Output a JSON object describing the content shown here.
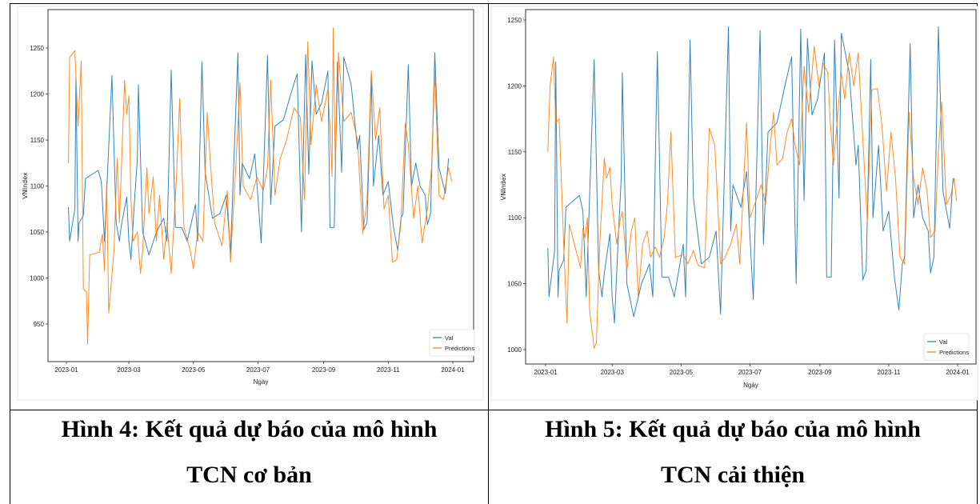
{
  "figures": [
    {
      "caption_line1": "Hình 4: Kết quả dự báo của mô hình",
      "caption_line2": "TCN cơ bản"
    },
    {
      "caption_line1": "Hình 5: Kết quả dự báo của mô hình",
      "caption_line2": "TCN cải thiện"
    }
  ],
  "chart_data": [
    {
      "type": "line",
      "xlabel": "Ngày",
      "ylabel": "VNIndex",
      "ylim": [
        915,
        1285
      ],
      "xlim": [
        "2022-12-20",
        "2024-01-08"
      ],
      "yticks": [
        950,
        1000,
        1050,
        1100,
        1150,
        1200,
        1250
      ],
      "xticks": [
        "2023-01",
        "2023-03",
        "2023-05",
        "2023-07",
        "2023-09",
        "2023-11",
        "2024-01"
      ],
      "grid": false,
      "legend": "bottom-right",
      "series": [
        {
          "name": "Val",
          "color": "#1f77b4",
          "x": [
            "2023-01-03",
            "2023-01-04",
            "2023-01-09",
            "2023-01-10",
            "2023-01-12",
            "2023-01-13",
            "2023-01-17",
            "2023-01-19",
            "2023-01-31",
            "2023-02-03",
            "2023-02-06",
            "2023-02-13",
            "2023-02-17",
            "2023-02-20",
            "2023-02-22",
            "2023-02-27",
            "2023-03-01",
            "2023-03-03",
            "2023-03-06",
            "2023-03-09",
            "2023-03-10",
            "2023-03-14",
            "2023-03-20",
            "2023-03-27",
            "2023-04-03",
            "2023-04-06",
            "2023-04-10",
            "2023-04-14",
            "2023-04-20",
            "2023-04-25",
            "2023-05-03",
            "2023-05-05",
            "2023-05-09",
            "2023-05-12",
            "2023-05-19",
            "2023-05-26",
            "2023-06-01",
            "2023-06-05",
            "2023-06-12",
            "2023-06-14",
            "2023-06-16",
            "2023-06-23",
            "2023-06-28",
            "2023-07-04",
            "2023-07-10",
            "2023-07-13",
            "2023-07-17",
            "2023-07-25",
            "2023-08-01",
            "2023-08-07",
            "2023-08-11",
            "2023-08-15",
            "2023-08-18",
            "2023-08-21",
            "2023-08-25",
            "2023-08-30",
            "2023-09-05",
            "2023-09-07",
            "2023-09-11",
            "2023-09-14",
            "2023-09-18",
            "2023-09-20",
            "2023-09-27",
            "2023-10-03",
            "2023-10-05",
            "2023-10-09",
            "2023-10-12",
            "2023-10-16",
            "2023-10-18",
            "2023-10-23",
            "2023-10-27",
            "2023-11-01",
            "2023-11-06",
            "2023-11-10",
            "2023-11-13",
            "2023-11-15",
            "2023-11-20",
            "2023-11-23",
            "2023-11-27",
            "2023-12-01",
            "2023-12-06",
            "2023-12-08",
            "2023-12-11",
            "2023-12-15",
            "2023-12-19",
            "2023-12-25",
            "2023-12-28"
          ],
          "y": [
            1077,
            1040,
            1075,
            1218,
            1040,
            1060,
            1068,
            1108,
            1117,
            1105,
            1040,
            1220,
            1060,
            1040,
            1058,
            1088,
            1040,
            1020,
            1078,
            1130,
            1210,
            1050,
            1025,
            1050,
            1065,
            1040,
            1226,
            1055,
            1055,
            1040,
            1080,
            1040,
            1235,
            1115,
            1065,
            1070,
            1090,
            1027,
            1245,
            1090,
            1125,
            1108,
            1135,
            1038,
            1242,
            1080,
            1165,
            1172,
            1200,
            1222,
            1050,
            1243,
            1113,
            1236,
            1178,
            1190,
            1225,
            1055,
            1055,
            1235,
            1115,
            1240,
            1210,
            1140,
            1155,
            1053,
            1060,
            1220,
            1100,
            1155,
            1090,
            1105,
            1055,
            1030,
            1065,
            1070,
            1232,
            1100,
            1125,
            1100,
            1090,
            1058,
            1070,
            1245,
            1120,
            1092,
            1130
          ]
        },
        {
          "name": "Predictions",
          "color": "#ff7f0e",
          "x": [
            "2023-01-03",
            "2023-01-04",
            "2023-01-09",
            "2023-01-12",
            "2023-01-15",
            "2023-01-17",
            "2023-01-20",
            "2023-01-21",
            "2023-01-23",
            "2023-02-01",
            "2023-02-04",
            "2023-02-06",
            "2023-02-08",
            "2023-02-10",
            "2023-02-15",
            "2023-02-18",
            "2023-02-20",
            "2023-02-25",
            "2023-02-27",
            "2023-03-01",
            "2023-03-03",
            "2023-03-05",
            "2023-03-09",
            "2023-03-12",
            "2023-03-14",
            "2023-03-18",
            "2023-03-20",
            "2023-03-24",
            "2023-03-27",
            "2023-03-30",
            "2023-04-03",
            "2023-04-06",
            "2023-04-10",
            "2023-04-15",
            "2023-04-18",
            "2023-04-22",
            "2023-04-28",
            "2023-05-01",
            "2023-05-05",
            "2023-05-10",
            "2023-05-14",
            "2023-05-17",
            "2023-05-21",
            "2023-05-28",
            "2023-06-02",
            "2023-06-05",
            "2023-06-10",
            "2023-06-14",
            "2023-06-17",
            "2023-06-24",
            "2023-06-30",
            "2023-07-06",
            "2023-07-10",
            "2023-07-13",
            "2023-07-17",
            "2023-07-22",
            "2023-07-28",
            "2023-08-04",
            "2023-08-10",
            "2023-08-14",
            "2023-08-17",
            "2023-08-20",
            "2023-08-25",
            "2023-08-30",
            "2023-09-05",
            "2023-09-07",
            "2023-09-09",
            "2023-09-10",
            "2023-09-12",
            "2023-09-15",
            "2023-09-20",
            "2023-09-27",
            "2023-10-03",
            "2023-10-08",
            "2023-10-12",
            "2023-10-16",
            "2023-10-20",
            "2023-10-24",
            "2023-10-28",
            "2023-11-01",
            "2023-11-05",
            "2023-11-09",
            "2023-11-13",
            "2023-11-17",
            "2023-11-20",
            "2023-11-25",
            "2023-11-29",
            "2023-12-03",
            "2023-12-08",
            "2023-12-12",
            "2023-12-15",
            "2023-12-19",
            "2023-12-23",
            "2023-12-28",
            "2023-12-31"
          ],
          "y": [
            1125,
            1240,
            1247,
            1165,
            1236,
            988,
            985,
            928,
            1025,
            1028,
            1048,
            1008,
            1105,
            962,
            1030,
            1130,
            1060,
            1215,
            1178,
            1198,
            1085,
            1040,
            1050,
            1005,
            1030,
            1120,
            1070,
            1110,
            1040,
            1090,
            1020,
            1060,
            1005,
            1110,
            1195,
            1055,
            1030,
            1010,
            1050,
            1040,
            1180,
            1125,
            1060,
            1035,
            1095,
            1017,
            1120,
            1212,
            1100,
            1085,
            1110,
            1095,
            1120,
            1215,
            1090,
            1130,
            1150,
            1185,
            1175,
            1085,
            1257,
            1145,
            1210,
            1170,
            1205,
            1165,
            1110,
            1272,
            1125,
            1245,
            1170,
            1180,
            1150,
            1048,
            1085,
            1225,
            1150,
            1185,
            1075,
            1090,
            1017,
            1020,
            1060,
            1168,
            1145,
            1065,
            1100,
            1038,
            1075,
            1120,
            1225,
            1090,
            1085,
            1120,
            1105
          ]
        }
      ]
    },
    {
      "type": "line",
      "xlabel": "Ngày",
      "ylabel": "VNIndex",
      "ylim": [
        990,
        1258
      ],
      "xlim": [
        "2022-12-18",
        "2024-01-08"
      ],
      "yticks": [
        1000,
        1050,
        1100,
        1150,
        1200,
        1250
      ],
      "xticks": [
        "2023-01",
        "2023-03",
        "2023-05",
        "2023-07",
        "2023-09",
        "2023-11",
        "2024-01"
      ],
      "grid": false,
      "legend": "bottom-right",
      "series": [
        {
          "name": "Val",
          "color": "#1f77b4",
          "x": [
            "2023-01-03",
            "2023-01-04",
            "2023-01-09",
            "2023-01-10",
            "2023-01-12",
            "2023-01-13",
            "2023-01-17",
            "2023-01-19",
            "2023-01-31",
            "2023-02-03",
            "2023-02-06",
            "2023-02-13",
            "2023-02-17",
            "2023-02-20",
            "2023-02-22",
            "2023-02-27",
            "2023-03-01",
            "2023-03-03",
            "2023-03-06",
            "2023-03-09",
            "2023-03-10",
            "2023-03-14",
            "2023-03-20",
            "2023-03-27",
            "2023-04-03",
            "2023-04-06",
            "2023-04-10",
            "2023-04-14",
            "2023-04-20",
            "2023-04-25",
            "2023-05-03",
            "2023-05-05",
            "2023-05-09",
            "2023-05-12",
            "2023-05-19",
            "2023-05-26",
            "2023-06-01",
            "2023-06-05",
            "2023-06-12",
            "2023-06-14",
            "2023-06-16",
            "2023-06-23",
            "2023-06-28",
            "2023-07-04",
            "2023-07-10",
            "2023-07-13",
            "2023-07-17",
            "2023-07-25",
            "2023-08-01",
            "2023-08-07",
            "2023-08-11",
            "2023-08-15",
            "2023-08-18",
            "2023-08-21",
            "2023-08-25",
            "2023-08-30",
            "2023-09-05",
            "2023-09-07",
            "2023-09-11",
            "2023-09-14",
            "2023-09-18",
            "2023-09-20",
            "2023-09-27",
            "2023-10-03",
            "2023-10-05",
            "2023-10-09",
            "2023-10-12",
            "2023-10-16",
            "2023-10-18",
            "2023-10-23",
            "2023-10-27",
            "2023-11-01",
            "2023-11-06",
            "2023-11-10",
            "2023-11-13",
            "2023-11-15",
            "2023-11-20",
            "2023-11-23",
            "2023-11-27",
            "2023-12-01",
            "2023-12-06",
            "2023-12-08",
            "2023-12-11",
            "2023-12-15",
            "2023-12-19",
            "2023-12-25",
            "2023-12-28"
          ],
          "y": [
            1077,
            1040,
            1075,
            1218,
            1040,
            1060,
            1068,
            1108,
            1117,
            1105,
            1040,
            1220,
            1060,
            1040,
            1058,
            1088,
            1040,
            1020,
            1078,
            1130,
            1210,
            1050,
            1025,
            1050,
            1065,
            1040,
            1226,
            1055,
            1055,
            1040,
            1080,
            1040,
            1235,
            1115,
            1065,
            1070,
            1090,
            1027,
            1245,
            1090,
            1125,
            1108,
            1135,
            1038,
            1242,
            1080,
            1165,
            1172,
            1200,
            1222,
            1050,
            1243,
            1113,
            1236,
            1178,
            1190,
            1225,
            1055,
            1055,
            1235,
            1115,
            1240,
            1210,
            1140,
            1155,
            1053,
            1060,
            1220,
            1100,
            1155,
            1090,
            1105,
            1055,
            1030,
            1065,
            1070,
            1232,
            1100,
            1125,
            1100,
            1090,
            1058,
            1070,
            1245,
            1120,
            1092,
            1130
          ]
        },
        {
          "name": "Predictions",
          "color": "#ff7f0e",
          "x": [
            "2023-01-03",
            "2023-01-05",
            "2023-01-08",
            "2023-01-10",
            "2023-01-13",
            "2023-01-17",
            "2023-01-20",
            "2023-01-22",
            "2023-01-28",
            "2023-02-01",
            "2023-02-03",
            "2023-02-05",
            "2023-02-07",
            "2023-02-09",
            "2023-02-13",
            "2023-02-15",
            "2023-02-18",
            "2023-02-22",
            "2023-02-24",
            "2023-02-27",
            "2023-03-01",
            "2023-03-05",
            "2023-03-08",
            "2023-03-10",
            "2023-03-14",
            "2023-03-18",
            "2023-03-21",
            "2023-03-24",
            "2023-03-28",
            "2023-04-01",
            "2023-04-04",
            "2023-04-08",
            "2023-04-12",
            "2023-04-16",
            "2023-04-19",
            "2023-04-22",
            "2023-04-26",
            "2023-05-03",
            "2023-05-07",
            "2023-05-12",
            "2023-05-16",
            "2023-05-22",
            "2023-05-26",
            "2023-05-31",
            "2023-06-05",
            "2023-06-09",
            "2023-06-14",
            "2023-06-19",
            "2023-06-22",
            "2023-06-28",
            "2023-07-01",
            "2023-07-06",
            "2023-07-11",
            "2023-07-15",
            "2023-07-19",
            "2023-07-22",
            "2023-07-25",
            "2023-07-30",
            "2023-08-03",
            "2023-08-07",
            "2023-08-10",
            "2023-08-14",
            "2023-08-18",
            "2023-08-22",
            "2023-08-27",
            "2023-08-31",
            "2023-09-04",
            "2023-09-08",
            "2023-09-10",
            "2023-09-13",
            "2023-09-17",
            "2023-09-20",
            "2023-09-23",
            "2023-09-27",
            "2023-10-01",
            "2023-10-05",
            "2023-10-09",
            "2023-10-13",
            "2023-10-17",
            "2023-10-22",
            "2023-10-26",
            "2023-10-30",
            "2023-11-03",
            "2023-11-07",
            "2023-11-11",
            "2023-11-15",
            "2023-11-19",
            "2023-11-23",
            "2023-11-27",
            "2023-12-01",
            "2023-12-05",
            "2023-12-08",
            "2023-12-12",
            "2023-12-15",
            "2023-12-18",
            "2023-12-22",
            "2023-12-26",
            "2023-12-29",
            "2023-12-31"
          ],
          "y": [
            1150,
            1200,
            1222,
            1172,
            1175,
            1080,
            1020,
            1095,
            1075,
            1062,
            1092,
            1085,
            1100,
            1030,
            1001,
            1005,
            1080,
            1145,
            1130,
            1138,
            1110,
            1080,
            1098,
            1105,
            1060,
            1090,
            1100,
            1040,
            1080,
            1090,
            1070,
            1078,
            1070,
            1085,
            1112,
            1165,
            1070,
            1072,
            1065,
            1075,
            1064,
            1062,
            1168,
            1155,
            1065,
            1070,
            1080,
            1095,
            1065,
            1172,
            1100,
            1112,
            1125,
            1110,
            1155,
            1180,
            1140,
            1145,
            1165,
            1175,
            1155,
            1140,
            1215,
            1180,
            1230,
            1200,
            1217,
            1210,
            1175,
            1140,
            1180,
            1210,
            1190,
            1225,
            1200,
            1225,
            1160,
            1098,
            1197,
            1198,
            1170,
            1120,
            1165,
            1130,
            1070,
            1065,
            1180,
            1130,
            1110,
            1138,
            1120,
            1085,
            1090,
            1150,
            1188,
            1110,
            1117,
            1130,
            1113
          ]
        }
      ]
    }
  ]
}
